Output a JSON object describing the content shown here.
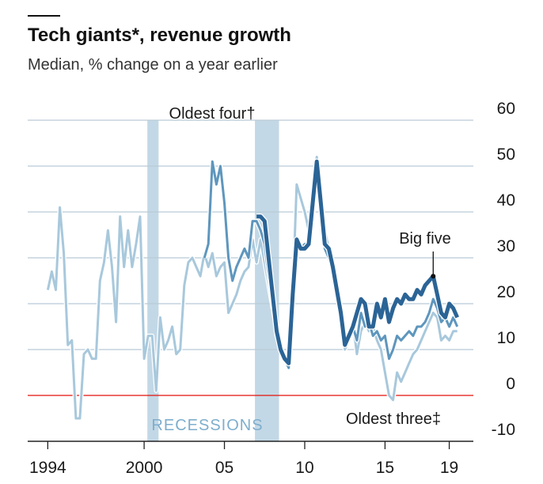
{
  "chart_data": {
    "type": "line",
    "title": "Tech giants*, revenue growth",
    "subtitle": "Median, % change on a year earlier",
    "xlim": [
      1992.75,
      2020.5
    ],
    "xticks": [
      1994,
      2000,
      {
        "value": 2005,
        "label": "05"
      },
      {
        "value": 2010,
        "label": "10"
      },
      {
        "value": 2015,
        "label": "15"
      },
      {
        "value": 2019,
        "label": "19"
      }
    ],
    "ylim": [
      -10,
      60
    ],
    "yticks": [
      -10,
      0,
      10,
      20,
      30,
      40,
      50,
      60
    ],
    "grid": true,
    "grid_color": "#b9cad6",
    "zero_line_color": "#e3120b",
    "recession_label": "RECESSIONS",
    "recession_color": "#c3d8e6",
    "recessions": [
      [
        2000.2,
        2000.9
      ],
      [
        2006.9,
        2008.4
      ]
    ],
    "series": [
      {
        "name": "Oldest three‡",
        "color": "#a8c8dc",
        "width": 3,
        "x": [
          1994,
          1994.25,
          1994.5,
          1994.75,
          1995,
          1995.25,
          1995.5,
          1995.75,
          1996,
          1996.25,
          1996.5,
          1996.75,
          1997,
          1997.25,
          1997.5,
          1997.75,
          1998,
          1998.25,
          1998.5,
          1998.75,
          1999,
          1999.25,
          1999.5,
          1999.75,
          2000,
          2000.25,
          2000.5,
          2000.75,
          2001,
          2001.25,
          2001.5,
          2001.75,
          2002,
          2002.25,
          2002.5,
          2002.75,
          2003,
          2003.25,
          2003.5,
          2003.75,
          2004,
          2004.25,
          2004.5,
          2004.75,
          2005,
          2005.25,
          2005.5,
          2005.75,
          2006,
          2006.25,
          2006.5,
          2006.75,
          2007,
          2007.25,
          2007.5,
          2007.75,
          2008,
          2008.25,
          2008.5,
          2008.75,
          2009,
          2009.25,
          2009.5,
          2009.75,
          2010,
          2010.25,
          2010.5,
          2010.75,
          2011,
          2011.25,
          2011.5,
          2011.75,
          2012,
          2012.25,
          2012.5,
          2012.75,
          2013,
          2013.25,
          2013.5,
          2013.75,
          2014,
          2014.25,
          2014.5,
          2014.75,
          2015,
          2015.25,
          2015.5,
          2015.75,
          2016,
          2016.25,
          2016.5,
          2016.75,
          2017,
          2017.25,
          2017.5,
          2017.75,
          2018,
          2018.25,
          2018.5,
          2018.75,
          2019,
          2019.25,
          2019.5
        ],
        "values": [
          23,
          27,
          23,
          41,
          31,
          11,
          12,
          -5,
          -5,
          9,
          10,
          8,
          8,
          25,
          29,
          36,
          28,
          16,
          39,
          28,
          36,
          28,
          33,
          39,
          8,
          13,
          13,
          1,
          17,
          10,
          12,
          15,
          9,
          10,
          24,
          29,
          30,
          28,
          26,
          31,
          28,
          31,
          26,
          28,
          29,
          18,
          20,
          22,
          25,
          27,
          28,
          34,
          29,
          34,
          29,
          24,
          19,
          14,
          10,
          8,
          7,
          22,
          46,
          43,
          40,
          36,
          41,
          52,
          44,
          36,
          32,
          27,
          24,
          18,
          10,
          12,
          16,
          9,
          14,
          16,
          14,
          15,
          12,
          10,
          5,
          0,
          -1,
          5,
          3,
          5,
          7,
          9,
          10,
          12,
          14,
          16,
          18,
          17,
          12,
          13,
          12,
          14,
          14
        ]
      },
      {
        "name": "Oldest four†",
        "color": "#5e96bd",
        "width": 3,
        "x": [
          2003.75,
          2004,
          2004.25,
          2004.5,
          2004.75,
          2005,
          2005.25,
          2005.5,
          2005.75,
          2006,
          2006.25,
          2006.5,
          2006.75,
          2007,
          2007.25,
          2007.5,
          2007.75,
          2008,
          2008.25,
          2008.5,
          2008.75,
          2009,
          2009.25,
          2009.5,
          2009.75,
          2010,
          2010.25,
          2010.5,
          2010.75,
          2011,
          2011.25,
          2011.5,
          2011.75,
          2012,
          2012.25,
          2012.5,
          2012.75,
          2013,
          2013.25,
          2013.5,
          2013.75,
          2014,
          2014.25,
          2014.5,
          2014.75,
          2015,
          2015.25,
          2015.5,
          2015.75,
          2016,
          2016.25,
          2016.5,
          2016.75,
          2017,
          2017.25,
          2017.5,
          2017.75,
          2018,
          2018.25,
          2018.5,
          2018.75,
          2019,
          2019.25,
          2019.5
        ],
        "values": [
          30,
          33,
          51,
          46,
          50,
          42,
          30,
          25,
          28,
          30,
          32,
          30,
          38,
          38,
          36,
          33,
          26,
          20,
          13,
          10,
          8,
          6,
          25,
          34,
          32,
          33,
          33,
          38,
          51,
          40,
          32,
          30,
          27,
          22,
          18,
          12,
          12,
          15,
          12,
          18,
          15,
          16,
          13,
          14,
          12,
          13,
          8,
          10,
          13,
          12,
          13,
          14,
          13,
          15,
          15,
          16,
          18,
          21,
          19,
          16,
          17,
          15,
          17,
          15
        ]
      },
      {
        "name": "Big five",
        "color": "#2b6496",
        "width": 5,
        "x": [
          2007,
          2007.25,
          2007.5,
          2007.75,
          2008,
          2008.25,
          2008.5,
          2008.75,
          2009,
          2009.25,
          2009.5,
          2009.75,
          2010,
          2010.25,
          2010.5,
          2010.75,
          2011,
          2011.25,
          2011.5,
          2011.75,
          2012,
          2012.25,
          2012.5,
          2012.75,
          2013,
          2013.25,
          2013.5,
          2013.75,
          2014,
          2014.25,
          2014.5,
          2014.75,
          2015,
          2015.25,
          2015.5,
          2015.75,
          2016,
          2016.25,
          2016.5,
          2016.75,
          2017,
          2017.25,
          2017.5,
          2017.75,
          2018,
          2018.25,
          2018.5,
          2018.75,
          2019,
          2019.25,
          2019.5
        ],
        "values": [
          39,
          39,
          38,
          30,
          22,
          14,
          10,
          8,
          7,
          22,
          34,
          32,
          32,
          33,
          42,
          51,
          42,
          33,
          32,
          28,
          23,
          18,
          11,
          13,
          15,
          18,
          21,
          20,
          15,
          15,
          20,
          17,
          21,
          16,
          19,
          21,
          20,
          22,
          21,
          21,
          23,
          22,
          24,
          25,
          26,
          22,
          18,
          17,
          20,
          19,
          17
        ]
      }
    ]
  }
}
